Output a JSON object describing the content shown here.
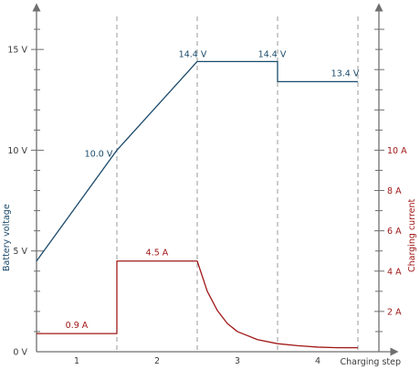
{
  "chart_data": {
    "type": "line",
    "x": [
      0,
      1,
      2,
      3,
      4
    ],
    "xlabel": "Charging step",
    "step_labels": [
      "1",
      "2",
      "3",
      "4"
    ],
    "y_left": {
      "label": "Battery voltage",
      "range": [
        0,
        17
      ],
      "ticks": [
        {
          "value": 0,
          "label": "0 V"
        },
        {
          "value": 5,
          "label": "5 V"
        },
        {
          "value": 10,
          "label": "10 V"
        },
        {
          "value": 15,
          "label": "15 V"
        }
      ]
    },
    "y_right": {
      "label": "Charging current",
      "range": [
        0,
        17
      ],
      "ticks": [
        {
          "value": 2,
          "label": "2 A"
        },
        {
          "value": 4,
          "label": "4 A"
        },
        {
          "value": 6,
          "label": "6 A"
        },
        {
          "value": 8,
          "label": "8 A"
        },
        {
          "value": 10,
          "label": "10 A"
        }
      ]
    },
    "series": [
      {
        "color": "#1b4a6b",
        "points": [
          [
            0,
            4.5
          ],
          [
            1,
            10.0
          ],
          [
            2,
            14.4
          ],
          [
            3,
            14.4
          ],
          [
            3,
            13.4
          ],
          [
            4,
            13.4
          ]
        ],
        "annotations": [
          {
            "x": 1,
            "y": 10.0,
            "label": "10.0 V"
          },
          {
            "x": 2,
            "y": 14.4,
            "label": "14.4 V"
          },
          {
            "x": 3,
            "y": 14.4,
            "label": "14.4 V"
          },
          {
            "x": 4,
            "y": 13.4,
            "label": "13.4 V"
          }
        ]
      },
      {
        "color": "#a01818",
        "points": [
          [
            0,
            0.9
          ],
          [
            1,
            0.9
          ],
          [
            1,
            4.5
          ],
          [
            2,
            4.5
          ],
          [
            2.125,
            3.0
          ],
          [
            2.25,
            2.05
          ],
          [
            2.375,
            1.4
          ],
          [
            2.5,
            1.0
          ],
          [
            2.75,
            0.6
          ],
          [
            3,
            0.4
          ],
          [
            3.25,
            0.3
          ],
          [
            3.5,
            0.23
          ],
          [
            3.75,
            0.2
          ],
          [
            4,
            0.2
          ]
        ],
        "annotations": [
          {
            "x": 0.5,
            "y": 0.9,
            "label": "0.9 A"
          },
          {
            "x": 1.5,
            "y": 4.5,
            "label": "4.5 A"
          }
        ]
      }
    ],
    "colors": {
      "voltage": "#1b4a6b",
      "current": "#a01818",
      "axis": "#6f6f6f"
    },
    "grid": false
  }
}
